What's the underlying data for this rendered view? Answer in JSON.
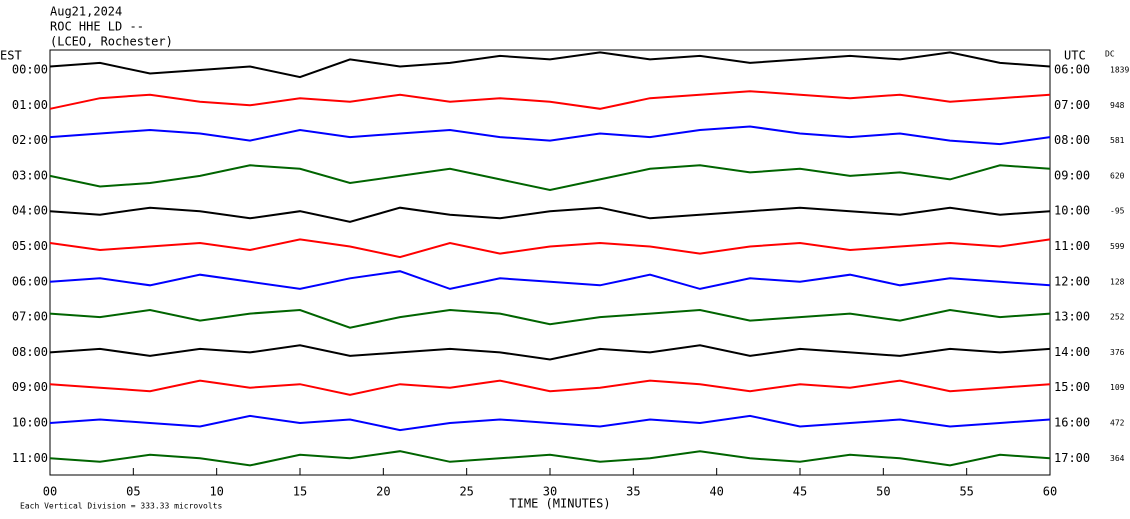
{
  "chart_data": {
    "type": "helicorder",
    "date": "Aug21,2024",
    "station": "ROC HHE LD --",
    "location": "(LCEO, Rochester)",
    "left_axis_title": "EST",
    "right_axis_title": "UTC",
    "dc_title": "DC",
    "xlabel": "TIME (MINUTES)",
    "footer": "Each Vertical Division =  333.33 microvolts",
    "xlim": [
      0,
      60
    ],
    "xticks": [
      {
        "value": 0,
        "label": "00"
      },
      {
        "value": 5,
        "label": "05"
      },
      {
        "value": 10,
        "label": "10"
      },
      {
        "value": 15,
        "label": "15"
      },
      {
        "value": 20,
        "label": "20"
      },
      {
        "value": 25,
        "label": "25"
      },
      {
        "value": 30,
        "label": "30"
      },
      {
        "value": 35,
        "label": "35"
      },
      {
        "value": 40,
        "label": "40"
      },
      {
        "value": 45,
        "label": "45"
      },
      {
        "value": 50,
        "label": "50"
      },
      {
        "value": 55,
        "label": "55"
      },
      {
        "value": 60,
        "label": "60"
      }
    ],
    "x": [
      0,
      3,
      6,
      9,
      12,
      15,
      18,
      21,
      24,
      27,
      30,
      33,
      36,
      39,
      42,
      45,
      48,
      51,
      54,
      57,
      60
    ],
    "rows": [
      {
        "est": "00:00",
        "utc": "06:00",
        "dc": 1839,
        "color": "#000000",
        "values": [
          0.1,
          0.2,
          -0.1,
          0.0,
          0.1,
          -0.2,
          0.3,
          0.1,
          0.2,
          0.4,
          0.3,
          0.5,
          0.3,
          0.4,
          0.2,
          0.3,
          0.4,
          0.3,
          0.5,
          0.2,
          0.1
        ]
      },
      {
        "est": "01:00",
        "utc": "07:00",
        "dc": 948,
        "color": "#ff0000",
        "values": [
          -0.1,
          0.2,
          0.3,
          0.1,
          0.0,
          0.2,
          0.1,
          0.3,
          0.1,
          0.2,
          0.1,
          -0.1,
          0.2,
          0.3,
          0.4,
          0.3,
          0.2,
          0.3,
          0.1,
          0.2,
          0.3
        ]
      },
      {
        "est": "02:00",
        "utc": "08:00",
        "dc": 581,
        "color": "#0000ff",
        "values": [
          0.1,
          0.2,
          0.3,
          0.2,
          0.0,
          0.3,
          0.1,
          0.2,
          0.3,
          0.1,
          0.0,
          0.2,
          0.1,
          0.3,
          0.4,
          0.2,
          0.1,
          0.2,
          0.0,
          -0.1,
          0.1
        ]
      },
      {
        "est": "03:00",
        "utc": "09:00",
        "dc": 620,
        "color": "#006400",
        "values": [
          0.0,
          -0.3,
          -0.2,
          0.0,
          0.3,
          0.2,
          -0.2,
          0.0,
          0.2,
          -0.1,
          -0.4,
          -0.1,
          0.2,
          0.3,
          0.1,
          0.2,
          0.0,
          0.1,
          -0.1,
          0.3,
          0.2
        ]
      },
      {
        "est": "04:00",
        "utc": "10:00",
        "dc": -95,
        "color": "#000000",
        "values": [
          0.0,
          -0.1,
          0.1,
          0.0,
          -0.2,
          0.0,
          -0.3,
          0.1,
          -0.1,
          -0.2,
          0.0,
          0.1,
          -0.2,
          -0.1,
          0.0,
          0.1,
          0.0,
          -0.1,
          0.1,
          -0.1,
          0.0
        ]
      },
      {
        "est": "05:00",
        "utc": "11:00",
        "dc": 599,
        "color": "#ff0000",
        "values": [
          0.1,
          -0.1,
          0.0,
          0.1,
          -0.1,
          0.2,
          0.0,
          -0.3,
          0.1,
          -0.2,
          0.0,
          0.1,
          0.0,
          -0.2,
          0.0,
          0.1,
          -0.1,
          0.0,
          0.1,
          0.0,
          0.2
        ]
      },
      {
        "est": "06:00",
        "utc": "12:00",
        "dc": 128,
        "color": "#0000ff",
        "values": [
          0.0,
          0.1,
          -0.1,
          0.2,
          0.0,
          -0.2,
          0.1,
          0.3,
          -0.2,
          0.1,
          0.0,
          -0.1,
          0.2,
          -0.2,
          0.1,
          0.0,
          0.2,
          -0.1,
          0.1,
          0.0,
          -0.1
        ]
      },
      {
        "est": "07:00",
        "utc": "13:00",
        "dc": 252,
        "color": "#006400",
        "values": [
          0.1,
          0.0,
          0.2,
          -0.1,
          0.1,
          0.2,
          -0.3,
          0.0,
          0.2,
          0.1,
          -0.2,
          0.0,
          0.1,
          0.2,
          -0.1,
          0.0,
          0.1,
          -0.1,
          0.2,
          0.0,
          0.1
        ]
      },
      {
        "est": "08:00",
        "utc": "14:00",
        "dc": 376,
        "color": "#000000",
        "values": [
          0.0,
          0.1,
          -0.1,
          0.1,
          0.0,
          0.2,
          -0.1,
          0.0,
          0.1,
          0.0,
          -0.2,
          0.1,
          0.0,
          0.2,
          -0.1,
          0.1,
          0.0,
          -0.1,
          0.1,
          0.0,
          0.1
        ]
      },
      {
        "est": "09:00",
        "utc": "15:00",
        "dc": 109,
        "color": "#ff0000",
        "values": [
          0.1,
          0.0,
          -0.1,
          0.2,
          0.0,
          0.1,
          -0.2,
          0.1,
          0.0,
          0.2,
          -0.1,
          0.0,
          0.2,
          0.1,
          -0.1,
          0.1,
          0.0,
          0.2,
          -0.1,
          0.0,
          0.1
        ]
      },
      {
        "est": "10:00",
        "utc": "16:00",
        "dc": 472,
        "color": "#0000ff",
        "values": [
          0.0,
          0.1,
          0.0,
          -0.1,
          0.2,
          0.0,
          0.1,
          -0.2,
          0.0,
          0.1,
          0.0,
          -0.1,
          0.1,
          0.0,
          0.2,
          -0.1,
          0.0,
          0.1,
          -0.1,
          0.0,
          0.1
        ]
      },
      {
        "est": "11:00",
        "utc": "17:00",
        "dc": 364,
        "color": "#006400",
        "values": [
          0.0,
          -0.1,
          0.1,
          0.0,
          -0.2,
          0.1,
          0.0,
          0.2,
          -0.1,
          0.0,
          0.1,
          -0.1,
          0.0,
          0.2,
          0.0,
          -0.1,
          0.1,
          0.0,
          -0.2,
          0.1,
          0.0
        ]
      }
    ]
  }
}
